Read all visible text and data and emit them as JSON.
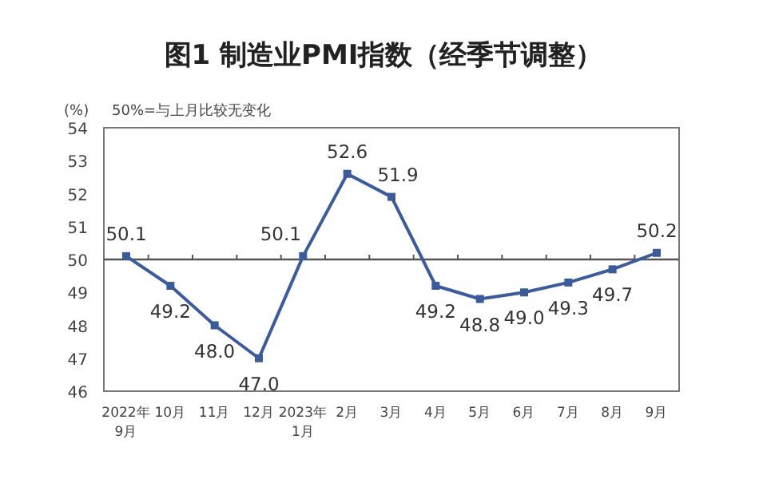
{
  "chart_data": {
    "type": "line",
    "title": "图1 制造业PMI指数（经季节调整）",
    "subtitle": "50%=与上月比较无变化",
    "ylabel": "(%)",
    "categories": [
      "2022年\n9月",
      "10月",
      "11月",
      "12月",
      "2023年\n1月",
      "2月",
      "3月",
      "4月",
      "5月",
      "6月",
      "7月",
      "8月",
      "9月"
    ],
    "series": [
      {
        "color": "#3b5b9b",
        "values": [
          50.1,
          49.2,
          48.0,
          47.0,
          50.1,
          52.6,
          51.9,
          49.2,
          48.8,
          49.0,
          49.3,
          49.7,
          50.2
        ]
      }
    ],
    "ylim": [
      46,
      54
    ],
    "yticks": [
      46,
      47,
      48,
      49,
      50,
      51,
      52,
      53,
      54
    ],
    "ref_lines": [
      {
        "axis": "y",
        "value": 50,
        "color": "#555555"
      }
    ],
    "value_labels": [
      "50.1",
      "49.2",
      "48.0",
      "47.0",
      "50.1",
      "52.6",
      "51.9",
      "49.2",
      "48.8",
      "49.0",
      "49.3",
      "49.7",
      "50.2"
    ],
    "marker": "square",
    "line_style": "solid",
    "grid": false
  }
}
